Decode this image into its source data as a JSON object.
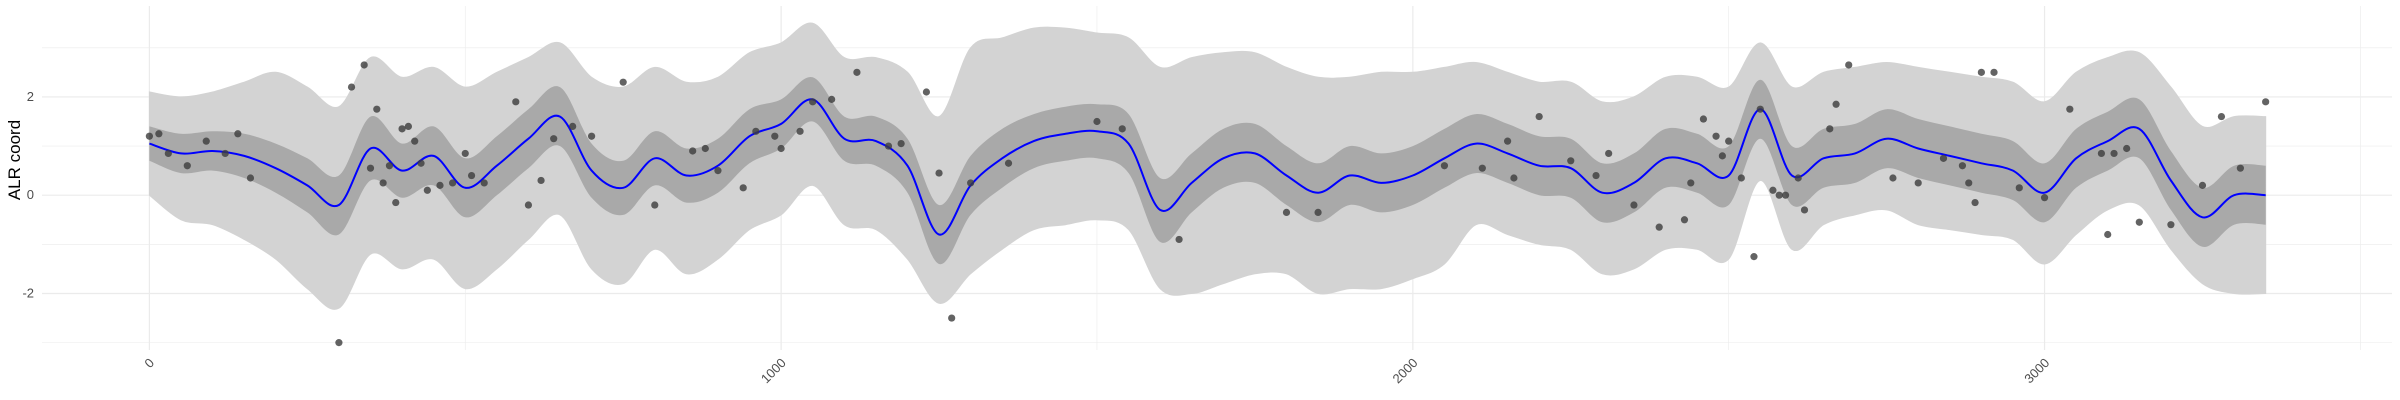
{
  "chart_data": {
    "type": "line",
    "title": "",
    "xlabel": "",
    "ylabel": "ALR coord",
    "xlim": [
      -170,
      3550
    ],
    "ylim": [
      -3.15,
      3.85
    ],
    "x_ticks": [
      0,
      1000,
      2000,
      3000
    ],
    "x_tick_labels": [
      "0",
      "1000",
      "2000",
      "3000"
    ],
    "x_minor_ticks": [
      -500,
      500,
      1500,
      2500,
      3500
    ],
    "y_ticks": [
      -2,
      0,
      2
    ],
    "y_tick_labels": [
      "-2",
      "0",
      "2"
    ],
    "y_minor_ticks": [
      -3,
      -1,
      1,
      3
    ],
    "grid": true,
    "legend": "none",
    "colors": {
      "mean_line": "#0000ff",
      "inner_band": "#a9a9a9",
      "outer_band": "#d3d3d3",
      "points": "#3c3c3c",
      "grid": "#ebebeb"
    },
    "series": [
      {
        "kind": "line",
        "x": [
          0,
          50,
          100,
          150,
          200,
          250,
          300,
          350,
          400,
          450,
          500,
          550,
          600,
          650,
          700,
          750,
          800,
          850,
          900,
          950,
          1000,
          1050,
          1100,
          1150,
          1200,
          1250,
          1300,
          1350,
          1400,
          1450,
          1500,
          1550,
          1600,
          1650,
          1700,
          1750,
          1800,
          1850,
          1900,
          1950,
          2000,
          2050,
          2100,
          2150,
          2200,
          2250,
          2300,
          2350,
          2400,
          2450,
          2500,
          2550,
          2600,
          2650,
          2700,
          2750,
          2800,
          2850,
          2900,
          2950,
          3000,
          3050,
          3100,
          3150,
          3200,
          3250,
          3300,
          3350
        ],
        "y": [
          1.05,
          0.85,
          0.9,
          0.8,
          0.55,
          0.2,
          -0.2,
          0.95,
          0.5,
          0.8,
          0.15,
          0.6,
          1.15,
          1.6,
          0.5,
          0.15,
          0.75,
          0.4,
          0.6,
          1.2,
          1.45,
          1.95,
          1.15,
          1.1,
          0.6,
          -0.8,
          0.2,
          0.75,
          1.1,
          1.25,
          1.3,
          1.05,
          -0.3,
          0.25,
          0.75,
          0.85,
          0.4,
          0.05,
          0.4,
          0.25,
          0.4,
          0.75,
          1.05,
          0.85,
          0.6,
          0.55,
          0.05,
          0.25,
          0.75,
          0.65,
          0.4,
          1.75,
          0.4,
          0.75,
          0.85,
          1.15,
          0.95,
          0.8,
          0.65,
          0.5,
          0.05,
          0.75,
          1.1,
          1.35,
          0.3,
          -0.45,
          0.0,
          0.0
        ]
      },
      {
        "kind": "band",
        "name": "",
        "x": [
          0,
          50,
          100,
          150,
          200,
          250,
          300,
          350,
          400,
          450,
          500,
          550,
          600,
          650,
          700,
          750,
          800,
          850,
          900,
          950,
          1000,
          1050,
          1100,
          1150,
          1200,
          1250,
          1300,
          1350,
          1400,
          1450,
          1500,
          1550,
          1600,
          1650,
          1700,
          1750,
          1800,
          1850,
          1900,
          1950,
          2000,
          2050,
          2100,
          2150,
          2200,
          2250,
          2300,
          2350,
          2400,
          2450,
          2500,
          2550,
          2600,
          2650,
          2700,
          2750,
          2800,
          2850,
          2900,
          2950,
          3000,
          3050,
          3100,
          3150,
          3200,
          3250,
          3300,
          3350
        ],
        "lower": [
          0.7,
          0.45,
          0.5,
          0.35,
          0.05,
          -0.35,
          -0.8,
          0.3,
          -0.05,
          0.2,
          -0.45,
          0.0,
          0.55,
          1.0,
          -0.05,
          -0.4,
          0.2,
          -0.15,
          0.05,
          0.65,
          0.95,
          1.5,
          0.7,
          0.6,
          0.05,
          -1.4,
          -0.4,
          0.15,
          0.55,
          0.7,
          0.75,
          0.45,
          -0.95,
          -0.35,
          0.15,
          0.25,
          -0.2,
          -0.55,
          -0.2,
          -0.35,
          -0.2,
          0.15,
          0.45,
          0.25,
          0.0,
          -0.05,
          -0.55,
          -0.35,
          0.15,
          0.05,
          -0.2,
          1.15,
          -0.2,
          0.15,
          0.25,
          0.55,
          0.35,
          0.2,
          0.05,
          -0.1,
          -0.55,
          0.15,
          0.5,
          0.75,
          -0.3,
          -1.05,
          -0.6,
          -0.6
        ],
        "upper": [
          1.4,
          1.25,
          1.3,
          1.25,
          1.05,
          0.75,
          0.4,
          1.6,
          1.05,
          1.4,
          0.75,
          1.2,
          1.75,
          2.2,
          1.05,
          0.7,
          1.3,
          0.95,
          1.15,
          1.75,
          1.95,
          2.4,
          1.6,
          1.6,
          1.15,
          -0.2,
          0.8,
          1.35,
          1.65,
          1.8,
          1.85,
          1.65,
          0.35,
          0.85,
          1.35,
          1.45,
          1.0,
          0.65,
          1.0,
          0.85,
          1.0,
          1.35,
          1.65,
          1.45,
          1.2,
          1.15,
          0.65,
          0.85,
          1.35,
          1.25,
          1.0,
          2.35,
          1.0,
          1.35,
          1.45,
          1.75,
          1.55,
          1.4,
          1.25,
          1.1,
          0.65,
          1.35,
          1.7,
          1.95,
          0.9,
          0.15,
          0.6,
          0.6
        ]
      },
      {
        "kind": "band",
        "name": "",
        "x": [
          0,
          50,
          100,
          150,
          200,
          250,
          300,
          350,
          400,
          450,
          500,
          550,
          600,
          650,
          700,
          750,
          800,
          850,
          900,
          950,
          1000,
          1050,
          1100,
          1150,
          1200,
          1250,
          1300,
          1350,
          1400,
          1450,
          1500,
          1550,
          1600,
          1650,
          1700,
          1750,
          1800,
          1850,
          1900,
          1950,
          2000,
          2050,
          2100,
          2150,
          2200,
          2250,
          2300,
          2350,
          2400,
          2450,
          2500,
          2550,
          2600,
          2650,
          2700,
          2750,
          2800,
          2850,
          2900,
          2950,
          3000,
          3050,
          3100,
          3150,
          3200,
          3250,
          3300,
          3350
        ],
        "lower": [
          0.0,
          -0.5,
          -0.6,
          -0.9,
          -1.3,
          -1.9,
          -2.3,
          -1.2,
          -1.5,
          -1.3,
          -1.9,
          -1.5,
          -0.9,
          -0.4,
          -1.5,
          -1.8,
          -1.1,
          -1.6,
          -1.3,
          -0.7,
          -0.4,
          0.2,
          -0.6,
          -0.7,
          -1.3,
          -2.2,
          -1.6,
          -1.1,
          -0.7,
          -0.6,
          -0.5,
          -0.7,
          -1.9,
          -2.0,
          -1.8,
          -1.6,
          -1.6,
          -2.0,
          -1.9,
          -1.9,
          -1.7,
          -1.4,
          -0.6,
          -0.8,
          -1.0,
          -1.1,
          -1.6,
          -1.5,
          -1.1,
          -1.1,
          -1.3,
          0.3,
          -1.1,
          -0.6,
          -0.4,
          -0.3,
          -0.6,
          -0.7,
          -0.8,
          -0.9,
          -1.4,
          -0.8,
          -0.3,
          -0.2,
          -1.1,
          -1.8,
          -2.0,
          -2.0
        ],
        "upper": [
          2.1,
          2.0,
          2.1,
          2.3,
          2.5,
          2.2,
          1.8,
          2.8,
          2.4,
          2.6,
          2.2,
          2.5,
          2.8,
          3.1,
          2.4,
          2.2,
          2.6,
          2.3,
          2.4,
          2.9,
          3.1,
          3.5,
          2.8,
          2.8,
          2.5,
          1.6,
          3.0,
          3.2,
          3.4,
          3.4,
          3.3,
          3.2,
          2.6,
          2.8,
          2.9,
          2.9,
          2.6,
          2.4,
          2.4,
          2.5,
          2.5,
          2.6,
          2.7,
          2.5,
          2.3,
          2.3,
          1.9,
          2.0,
          2.4,
          2.4,
          2.2,
          3.1,
          2.2,
          2.5,
          2.6,
          2.7,
          2.6,
          2.5,
          2.4,
          2.3,
          1.9,
          2.5,
          2.8,
          2.9,
          2.2,
          1.4,
          1.6,
          1.6
        ]
      },
      {
        "kind": "scatter",
        "x": [
          0,
          15,
          30,
          60,
          90,
          120,
          140,
          160,
          300,
          320,
          340,
          350,
          360,
          370,
          380,
          390,
          400,
          410,
          420,
          430,
          440,
          460,
          480,
          500,
          510,
          530,
          580,
          600,
          620,
          640,
          670,
          700,
          750,
          800,
          860,
          880,
          900,
          940,
          960,
          990,
          1000,
          1030,
          1050,
          1080,
          1120,
          1170,
          1190,
          1230,
          1250,
          1270,
          1300,
          1360,
          1500,
          1540,
          1630,
          1800,
          1850,
          2050,
          2110,
          2150,
          2160,
          2200,
          2250,
          2290,
          2310,
          2350,
          2390,
          2430,
          2440,
          2460,
          2480,
          2490,
          2500,
          2520,
          2540,
          2550,
          2570,
          2580,
          2590,
          2610,
          2620,
          2660,
          2670,
          2690,
          2760,
          2800,
          2840,
          2870,
          2880,
          2890,
          2900,
          2920,
          2960,
          3000,
          3040,
          3090,
          3100,
          3110,
          3130,
          3150,
          3200,
          3250,
          3280,
          3310,
          3350
        ],
        "y": [
          1.2,
          1.25,
          0.85,
          0.6,
          1.1,
          0.85,
          1.25,
          0.35,
          -3.0,
          2.2,
          2.65,
          0.55,
          1.75,
          0.25,
          0.6,
          -0.15,
          1.35,
          1.4,
          1.1,
          0.65,
          0.1,
          0.2,
          0.25,
          0.85,
          0.4,
          0.25,
          1.9,
          -0.2,
          0.3,
          1.15,
          1.4,
          1.2,
          2.3,
          -0.2,
          0.9,
          0.95,
          0.5,
          0.15,
          1.3,
          1.2,
          0.95,
          1.3,
          1.9,
          1.95,
          2.5,
          1.0,
          1.05,
          2.1,
          0.45,
          -2.5,
          0.25,
          0.65,
          1.5,
          1.35,
          -0.9,
          -0.35,
          -0.35,
          0.6,
          0.55,
          1.1,
          0.35,
          1.6,
          0.7,
          0.4,
          0.85,
          -0.2,
          -0.65,
          -0.5,
          0.25,
          1.55,
          1.2,
          0.8,
          1.1,
          0.35,
          -1.25,
          1.75,
          0.1,
          0.0,
          0.0,
          0.35,
          -0.3,
          1.35,
          1.85,
          2.65,
          0.35,
          0.25,
          0.75,
          0.6,
          0.25,
          -0.15,
          2.5,
          2.5,
          0.15,
          -0.05,
          1.75,
          0.85,
          -0.8,
          0.85,
          0.95,
          -0.55,
          -0.6,
          0.2,
          1.6,
          0.55,
          1.9
        ],
        "extra_y_note": ""
      }
    ]
  }
}
